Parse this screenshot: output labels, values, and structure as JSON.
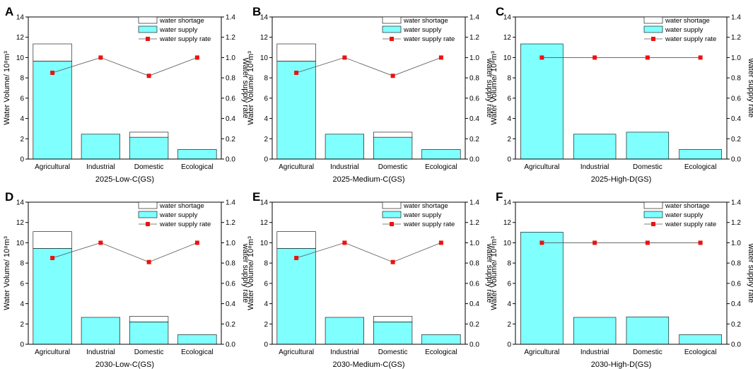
{
  "colors": {
    "supply": "#80ffff",
    "shortage": "#ffffff",
    "rate_marker": "#ee1111",
    "rate_line": "#555555",
    "axis": "#000000"
  },
  "chart_data": [
    {
      "panel": "A",
      "type": "bar",
      "xlabel": "2025-Low-C(GS)",
      "ylabel": "Water Volume/ 10⁸m³",
      "y2label": "Water supply rate",
      "categories": [
        "Agricultural",
        "Industrial",
        "Domestic",
        "Ecological"
      ],
      "ylim": [
        0,
        14
      ],
      "y2lim": [
        0,
        1.4
      ],
      "yticks": [
        "0",
        "2",
        "4",
        "6",
        "8",
        "10",
        "12",
        "14"
      ],
      "y2ticks": [
        "0.0",
        "0.2",
        "0.4",
        "0.6",
        "0.8",
        "1.0",
        "1.2",
        "1.4"
      ],
      "legend": [
        "water shortage",
        "water supply",
        "water supply rate"
      ],
      "series": [
        {
          "name": "water supply",
          "values": [
            9.65,
            2.45,
            2.15,
            0.95
          ]
        },
        {
          "name": "water shortage",
          "values": [
            1.7,
            0,
            0.5,
            0
          ]
        },
        {
          "name": "water supply rate",
          "values": [
            0.85,
            1.0,
            0.82,
            1.0
          ]
        }
      ]
    },
    {
      "panel": "B",
      "type": "bar",
      "xlabel": "2025-Medium-C(GS)",
      "ylabel": "Water Volume/ 10⁸m³",
      "y2label": "water supply rate",
      "categories": [
        "Agricultural",
        "Industrial",
        "Domestic",
        "Ecological"
      ],
      "ylim": [
        0,
        14
      ],
      "y2lim": [
        0,
        1.4
      ],
      "yticks": [
        "0",
        "2",
        "4",
        "6",
        "8",
        "10",
        "12",
        "14"
      ],
      "y2ticks": [
        "0.0",
        "0.2",
        "0.4",
        "0.6",
        "0.8",
        "1.0",
        "1.2",
        "1.4"
      ],
      "legend": [
        "water shortage",
        "water supply",
        "water supply rate"
      ],
      "series": [
        {
          "name": "water supply",
          "values": [
            9.65,
            2.45,
            2.15,
            0.95
          ]
        },
        {
          "name": "water shortage",
          "values": [
            1.7,
            0,
            0.5,
            0
          ]
        },
        {
          "name": "water supply rate",
          "values": [
            0.85,
            1.0,
            0.82,
            1.0
          ]
        }
      ]
    },
    {
      "panel": "C",
      "type": "bar",
      "xlabel": "2025-High-D(GS)",
      "ylabel": "Water Volume/ 10⁸m³",
      "y2label": "water supply rate",
      "categories": [
        "Agricultural",
        "Industrial",
        "Domestic",
        "Ecological"
      ],
      "ylim": [
        0,
        14
      ],
      "y2lim": [
        0,
        1.4
      ],
      "yticks": [
        "0",
        "2",
        "4",
        "6",
        "8",
        "10",
        "12",
        "14"
      ],
      "y2ticks": [
        "0.0",
        "0.2",
        "0.4",
        "0.6",
        "0.8",
        "1.0",
        "1.2",
        "1.4"
      ],
      "legend": [
        "water shortage",
        "water supply",
        "water supply rate"
      ],
      "series": [
        {
          "name": "water supply",
          "values": [
            11.35,
            2.45,
            2.65,
            0.95
          ]
        },
        {
          "name": "water shortage",
          "values": [
            0,
            0,
            0,
            0
          ]
        },
        {
          "name": "water supply rate",
          "values": [
            1.0,
            1.0,
            1.0,
            1.0
          ]
        }
      ]
    },
    {
      "panel": "D",
      "type": "bar",
      "xlabel": "2030-Low-C(GS)",
      "ylabel": "Water Volume/ 10⁸m³",
      "y2label": "water supply rate",
      "categories": [
        "Agricultural",
        "Industrial",
        "Domestic",
        "Ecological"
      ],
      "ylim": [
        0,
        14
      ],
      "y2lim": [
        0,
        1.4
      ],
      "yticks": [
        "0",
        "2",
        "4",
        "6",
        "8",
        "10",
        "12",
        "14"
      ],
      "y2ticks": [
        "0.0",
        "0.2",
        "0.4",
        "0.6",
        "0.8",
        "1.0",
        "1.2",
        "1.4"
      ],
      "legend": [
        "water shortage",
        "water supply",
        "water supply rate"
      ],
      "series": [
        {
          "name": "water supply",
          "values": [
            9.45,
            2.65,
            2.2,
            0.95
          ]
        },
        {
          "name": "water shortage",
          "values": [
            1.65,
            0,
            0.55,
            0
          ]
        },
        {
          "name": "water supply rate",
          "values": [
            0.85,
            1.0,
            0.81,
            1.0
          ]
        }
      ]
    },
    {
      "panel": "E",
      "type": "bar",
      "xlabel": "2030-Medium-C(GS)",
      "ylabel": "Water Volume/ 10⁸m³",
      "y2label": "water supply rate",
      "categories": [
        "Agricultural",
        "Industrial",
        "Domestic",
        "Ecological"
      ],
      "ylim": [
        0,
        14
      ],
      "y2lim": [
        0,
        1.4
      ],
      "yticks": [
        "0",
        "2",
        "4",
        "6",
        "8",
        "10",
        "12",
        "14"
      ],
      "y2ticks": [
        "0.0",
        "0.2",
        "0.4",
        "0.6",
        "0.8",
        "1.0",
        "1.2",
        "1.4"
      ],
      "legend": [
        "water shortage",
        "water supply",
        "water supply rate"
      ],
      "series": [
        {
          "name": "water supply",
          "values": [
            9.45,
            2.65,
            2.2,
            0.95
          ]
        },
        {
          "name": "water shortage",
          "values": [
            1.65,
            0,
            0.55,
            0
          ]
        },
        {
          "name": "water supply rate",
          "values": [
            0.85,
            1.0,
            0.81,
            1.0
          ]
        }
      ]
    },
    {
      "panel": "F",
      "type": "bar",
      "xlabel": "2030-High-D(GS)",
      "ylabel": "Water Volume/ 10⁸m³",
      "y2label": "water supply rate",
      "categories": [
        "Agricultural",
        "Industrial",
        "Domestic",
        "Ecological"
      ],
      "ylim": [
        0,
        14
      ],
      "y2lim": [
        0,
        1.4
      ],
      "yticks": [
        "0",
        "2",
        "4",
        "6",
        "8",
        "10",
        "12",
        "14"
      ],
      "y2ticks": [
        "0.0",
        "0.2",
        "0.4",
        "0.6",
        "0.8",
        "1.0",
        "1.2",
        "1.4"
      ],
      "legend": [
        "water shortage",
        "water supply",
        "water supply rate"
      ],
      "series": [
        {
          "name": "water supply",
          "values": [
            11.05,
            2.65,
            2.7,
            0.95
          ]
        },
        {
          "name": "water shortage",
          "values": [
            0,
            0,
            0,
            0
          ]
        },
        {
          "name": "water supply rate",
          "values": [
            1.0,
            1.0,
            1.0,
            1.0
          ]
        }
      ]
    }
  ]
}
